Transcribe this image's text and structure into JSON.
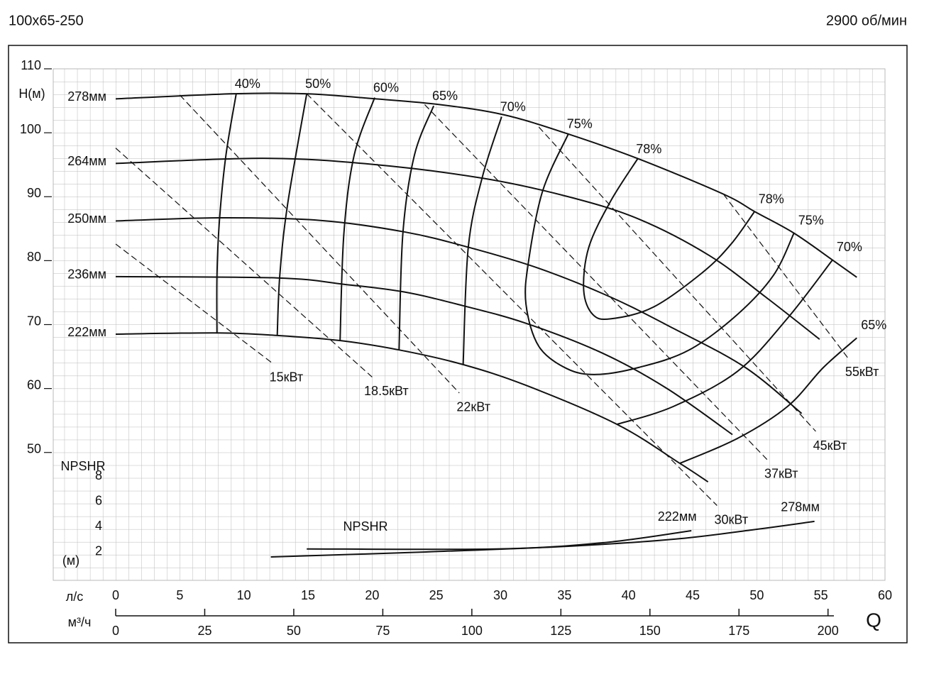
{
  "chart_data": {
    "type": "line",
    "title": "100x65-250",
    "subtitle": "2900 об/мин",
    "y_label": "Н(м)",
    "y2_label": "NPSHR",
    "y2_unit_label": "(м)",
    "x_label": "л/с",
    "x2_label": "м³/ч",
    "q_label": "Q",
    "npshr_curve_label": "NPSHR",
    "color": "#111111",
    "grid": true,
    "xlim": [
      0,
      60
    ],
    "xticks": [
      0,
      5,
      10,
      15,
      20,
      25,
      30,
      35,
      40,
      45,
      50,
      55,
      60
    ],
    "x2lim": [
      0,
      216
    ],
    "x2ticks": [
      0,
      25,
      50,
      75,
      100,
      125,
      150,
      175,
      200
    ],
    "ylim": [
      30,
      110
    ],
    "yticks": [
      50,
      60,
      70,
      80,
      90,
      100,
      110
    ],
    "y2lim": [
      0,
      40.7
    ],
    "y2ticks": [
      2,
      4,
      6,
      8
    ],
    "series": [
      {
        "name": "278мм",
        "x": [
          0,
          9.2,
          14.8,
          20.3,
          25.3,
          30.3,
          35.3,
          40.8,
          47.4,
          49.9,
          52.9,
          55.9,
          57.8
        ],
        "values": [
          105.3,
          106.1,
          106.1,
          105.3,
          104.4,
          102.8,
          99.8,
          95.9,
          90.4,
          87.6,
          84.3,
          80.1,
          77.4
        ]
      },
      {
        "name": "264мм",
        "x": [
          0,
          11.5,
          19.8,
          28.6,
          35.3,
          40.8,
          46.3,
          50.7,
          54.9
        ],
        "values": [
          95.2,
          96.0,
          95.1,
          92.9,
          90.0,
          86.5,
          80.8,
          74.3,
          67.7
        ]
      },
      {
        "name": "250мм",
        "x": [
          0,
          8.1,
          15.9,
          22.5,
          27.5,
          33.0,
          38.6,
          43.5,
          49.1,
          53.5
        ],
        "values": [
          86.2,
          86.7,
          86.3,
          84.5,
          82.1,
          78.8,
          74.3,
          69.4,
          63.3,
          56.1
        ]
      },
      {
        "name": "236мм",
        "x": [
          0,
          12.6,
          17.8,
          22.5,
          27.0,
          32.0,
          38.0,
          43.0,
          48.1
        ],
        "values": [
          77.5,
          77.3,
          76.3,
          75.1,
          73.0,
          70.2,
          65.5,
          60.0,
          52.8
        ]
      },
      {
        "name": "222мм",
        "x": [
          0,
          7.9,
          12.6,
          17.5,
          22.2,
          27.0,
          32.0,
          39.1,
          44.0,
          46.2
        ],
        "values": [
          68.5,
          68.7,
          68.3,
          67.5,
          66.0,
          63.8,
          60.5,
          54.4,
          48.3,
          45.4
        ]
      }
    ],
    "efficiency": [
      {
        "name": "40%",
        "x": [
          9.4,
          8.6,
          8.1,
          7.9,
          7.9
        ],
        "values": [
          106.1,
          96.5,
          86.5,
          77.7,
          68.6
        ]
      },
      {
        "name": "50%",
        "x": [
          14.9,
          13.4,
          12.8,
          12.6
        ],
        "values": [
          106.1,
          88.7,
          77.7,
          68.3
        ]
      },
      {
        "name": "60%",
        "x": [
          20.2,
          18.6,
          17.8,
          17.5
        ],
        "values": [
          105.5,
          96.5,
          84.3,
          67.5
        ]
      },
      {
        "name": "65%",
        "x": [
          24.8,
          23.3,
          22.4,
          22.1,
          null,
          44.0,
          48.5,
          52.4,
          55.2,
          57.8
        ],
        "values": [
          104.2,
          96.5,
          84.3,
          66.0,
          null,
          48.3,
          52.2,
          57.2,
          63.3,
          67.9
        ]
      },
      {
        "name": "70%",
        "x": [
          30.1,
          28.6,
          27.5,
          27.1,
          null,
          39.1,
          43.5,
          48.5,
          52.4,
          55.9
        ],
        "values": [
          102.5,
          93.1,
          82.1,
          63.8,
          null,
          54.4,
          57.2,
          62.7,
          71.0,
          80.1
        ]
      },
      {
        "name": "75%",
        "x": [
          35.3,
          33.3,
          32.2,
          32.0,
          33.0,
          35.2,
          37.5,
          40.8,
          44.7,
          48.5,
          51.3,
          52.9
        ],
        "values": [
          99.8,
          90.9,
          79.9,
          73.2,
          66.6,
          63.1,
          62.2,
          63.3,
          66.0,
          71.6,
          77.7,
          84.3
        ]
      },
      {
        "name": "78%",
        "x": [
          40.7,
          38.6,
          36.9,
          36.5,
          37.2,
          38.6,
          41.9,
          45.8,
          48.0,
          49.8
        ],
        "values": [
          95.9,
          89.3,
          82.1,
          75.4,
          71.6,
          70.9,
          72.7,
          78.2,
          82.6,
          87.6
        ]
      }
    ],
    "power": [
      {
        "name": "15кВт",
        "x": [
          0,
          12.2
        ],
        "values": [
          82.6,
          64.0
        ]
      },
      {
        "name": "18.5кВт",
        "x": [
          0,
          20.0
        ],
        "values": [
          97.6,
          61.8
        ]
      },
      {
        "name": "22кВт",
        "x": [
          5.0,
          26.8
        ],
        "values": [
          105.9,
          59.3
        ]
      },
      {
        "name": "30кВт",
        "x": [
          14.9,
          46.9
        ],
        "values": [
          106.1,
          41.7
        ]
      },
      {
        "name": "37кВт",
        "x": [
          24.1,
          50.8
        ],
        "values": [
          104.4,
          48.9
        ]
      },
      {
        "name": "45кВт",
        "x": [
          33.0,
          54.6
        ],
        "values": [
          100.9,
          53.3
        ]
      },
      {
        "name": "55кВт",
        "x": [
          47.4,
          57.1
        ],
        "values": [
          90.4,
          64.8
        ]
      }
    ],
    "npshr": [
      {
        "name": "222мм",
        "axis": "y2",
        "x": [
          14.9,
          29.7,
          38.0,
          44.9
        ],
        "values": [
          2.5,
          2.5,
          2.99,
          3.95
        ]
      },
      {
        "name": "278мм",
        "axis": "y2",
        "x": [
          12.1,
          24.2,
          35.3,
          43.6,
          49.6,
          54.5
        ],
        "values": [
          1.86,
          2.26,
          2.71,
          3.28,
          4.01,
          4.69
        ]
      }
    ]
  }
}
